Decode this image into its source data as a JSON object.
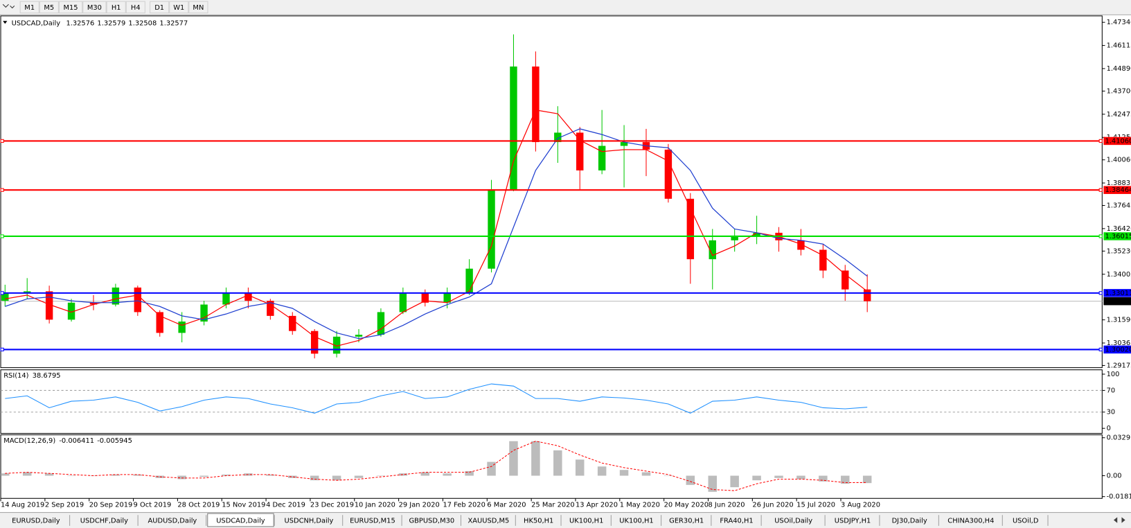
{
  "toolbar": [
    "M1",
    "M5",
    "M15",
    "M30",
    "H1",
    "H4",
    "D1",
    "W1",
    "MN"
  ],
  "chart_data": [
    {
      "type": "candlestick",
      "title": "USDCAD,Daily",
      "ohlc_values": [
        1.32576,
        1.32579,
        1.32508,
        1.32577
      ],
      "categories": [
        "14 Aug 2019",
        null,
        "2 Sep 2019",
        null,
        "20 Sep 2019",
        null,
        "9 Oct 2019",
        null,
        "28 Oct 2019",
        null,
        "15 Nov 2019",
        null,
        "4 Dec 2019",
        null,
        "23 Dec 2019",
        null,
        "10 Jan 2020",
        null,
        "29 Jan 2020",
        null,
        "17 Feb 2020",
        null,
        "6 Mar 2020",
        null,
        "25 Mar 2020",
        null,
        "13 Apr 2020",
        null,
        "1 May 2020",
        null,
        "20 May 2020",
        null,
        "8 Jun 2020",
        null,
        "26 Jun 2020",
        null,
        "15 Jul 2020",
        null,
        "3 Aug 2020",
        null
      ],
      "open": [
        1.326,
        1.33,
        1.331,
        1.316,
        1.325,
        1.324,
        1.333,
        1.32,
        1.309,
        1.315,
        1.324,
        1.33,
        1.326,
        1.318,
        1.31,
        1.298,
        1.307,
        1.308,
        1.32,
        1.33,
        1.325,
        1.33,
        1.343,
        1.385,
        1.45,
        1.41,
        1.415,
        1.395,
        1.408,
        1.41,
        1.406,
        1.38,
        1.348,
        1.358,
        1.36,
        1.362,
        1.358,
        1.353,
        1.342,
        1.332
      ],
      "high": [
        1.3345,
        1.338,
        1.334,
        1.327,
        1.329,
        1.335,
        1.334,
        1.321,
        1.32,
        1.326,
        1.333,
        1.333,
        1.327,
        1.32,
        1.311,
        1.31,
        1.311,
        1.322,
        1.333,
        1.332,
        1.333,
        1.348,
        1.39,
        1.467,
        1.458,
        1.429,
        1.418,
        1.427,
        1.419,
        1.417,
        1.409,
        1.383,
        1.364,
        1.364,
        1.371,
        1.365,
        1.364,
        1.356,
        1.345,
        1.34
      ],
      "low": [
        1.323,
        1.327,
        1.314,
        1.315,
        1.321,
        1.323,
        1.318,
        1.307,
        1.304,
        1.313,
        1.322,
        1.322,
        1.316,
        1.308,
        1.2955,
        1.296,
        1.304,
        1.307,
        1.319,
        1.323,
        1.322,
        1.329,
        1.341,
        1.384,
        1.405,
        1.399,
        1.385,
        1.393,
        1.386,
        1.392,
        1.378,
        1.335,
        1.332,
        1.352,
        1.356,
        1.352,
        1.35,
        1.338,
        1.326,
        1.32
      ],
      "close": [
        1.33,
        1.331,
        1.316,
        1.325,
        1.324,
        1.333,
        1.32,
        1.309,
        1.315,
        1.324,
        1.33,
        1.326,
        1.318,
        1.31,
        1.298,
        1.307,
        1.308,
        1.32,
        1.33,
        1.325,
        1.33,
        1.343,
        1.385,
        1.45,
        1.41,
        1.415,
        1.395,
        1.408,
        1.41,
        1.406,
        1.38,
        1.348,
        1.358,
        1.36,
        1.362,
        1.358,
        1.353,
        1.342,
        1.332,
        1.32577
      ],
      "up_color": "#00c800",
      "down_color": "#ff0000",
      "overlays": [
        {
          "color": "#ff0000",
          "values": [
            1.327,
            1.329,
            1.324,
            1.32,
            1.324,
            1.327,
            1.329,
            1.318,
            1.313,
            1.317,
            1.324,
            1.329,
            1.324,
            1.316,
            1.307,
            1.302,
            1.305,
            1.311,
            1.32,
            1.326,
            1.325,
            1.331,
            1.355,
            1.4,
            1.427,
            1.425,
            1.411,
            1.405,
            1.406,
            1.406,
            1.4,
            1.375,
            1.35,
            1.355,
            1.362,
            1.36,
            1.356,
            1.35,
            1.34,
            1.331
          ]
        },
        {
          "color": "#1f3fd0",
          "values": [
            1.323,
            1.327,
            1.328,
            1.326,
            1.325,
            1.325,
            1.326,
            1.323,
            1.318,
            1.316,
            1.319,
            1.323,
            1.325,
            1.322,
            1.315,
            1.309,
            1.306,
            1.308,
            1.313,
            1.319,
            1.324,
            1.328,
            1.335,
            1.365,
            1.395,
            1.412,
            1.417,
            1.414,
            1.41,
            1.408,
            1.407,
            1.395,
            1.375,
            1.364,
            1.362,
            1.359,
            1.358,
            1.356,
            1.348,
            1.339
          ]
        }
      ],
      "ylim": [
        1.2906,
        1.4768
      ],
      "yticks": [
        {
          "value": 1.4734,
          "label": "1.47340"
        },
        1.46115,
        {
          "value": 1.4489,
          "label": "1.44890"
        },
        {
          "value": 1.437,
          "label": "1.43700"
        },
        1.42475,
        {
          "value": 1.4125,
          "label": "1.41250"
        },
        {
          "value": 1.4006,
          "label": "1.40060"
        },
        1.38835,
        1.37645,
        {
          "value": 1.3642,
          "label": "1.36420"
        },
        {
          "value": 1.3523,
          "label": "1.35230"
        },
        1.34005,
        {
          "value": 1.3159,
          "label": "1.31590"
        },
        1.30365,
        1.29175
      ],
      "levels": [
        {
          "value": 1.4106,
          "label": "1.41060",
          "color": "#ff0000"
        },
        1.38464,
        {
          "value": 1.36015,
          "color": "#00e000"
        },
        1.33011,
        {
          "value": 1.3002,
          "label": "1.30020",
          "color": "#0000ff"
        }
      ],
      "level_colors": [
        "#ff0000",
        "#ff0000",
        "#00e000",
        "#0000ff",
        "#0000ff"
      ],
      "current_price": 1.32577
    },
    {
      "type": "line",
      "title": "RSI(14)",
      "current": 38.6795,
      "color": "#1e90ff",
      "values": [
        55,
        60,
        38,
        50,
        52,
        58,
        48,
        32,
        40,
        52,
        58,
        55,
        45,
        38,
        28,
        45,
        48,
        60,
        68,
        55,
        58,
        72,
        82,
        78,
        55,
        55,
        50,
        58,
        56,
        52,
        45,
        28,
        50,
        52,
        58,
        52,
        48,
        38,
        36,
        39
      ],
      "ylim": [
        -9.3,
        108
      ],
      "yticks": [
        100,
        70,
        30,
        0
      ],
      "levels": [
        70,
        30
      ]
    },
    {
      "type": "macd",
      "title": "MACD(12,26,9)",
      "current": [
        -0.006411,
        -0.005945
      ],
      "hist_color": "#a0a0a0",
      "signal_color": "#ff0000",
      "values": [
        0.002,
        0.003,
        0.002,
        0.0,
        0.0,
        0.001,
        0.001,
        -0.002,
        -0.003,
        -0.001,
        0.001,
        0.002,
        0.001,
        -0.002,
        -0.004,
        -0.004,
        -0.002,
        0.0,
        0.002,
        0.003,
        0.002,
        0.004,
        0.012,
        0.03,
        0.03,
        0.022,
        0.014,
        0.008,
        0.005,
        0.003,
        0.0,
        -0.008,
        -0.014,
        -0.01,
        -0.004,
        -0.002,
        -0.003,
        -0.005,
        -0.007,
        -0.006411
      ],
      "signal": [
        0.002,
        0.003,
        0.002,
        0.001,
        0.0,
        0.001,
        0.001,
        -0.001,
        -0.002,
        -0.002,
        0.0,
        0.001,
        0.001,
        -0.001,
        -0.003,
        -0.004,
        -0.003,
        -0.001,
        0.001,
        0.003,
        0.003,
        0.003,
        0.008,
        0.022,
        0.03,
        0.026,
        0.018,
        0.011,
        0.007,
        0.004,
        0.001,
        -0.005,
        -0.012,
        -0.013,
        -0.007,
        -0.003,
        -0.003,
        -0.004,
        -0.006,
        -0.005945
      ],
      "ylim": [
        -0.0197,
        0.0355
      ],
      "yticks": [
        0.032972,
        {
          "value": 0,
          "label": "0.00"
        },
        -0.01815
      ]
    }
  ],
  "tabs": [
    {
      "label": "EURUSD,Daily"
    },
    {
      "label": "USDCHF,Daily"
    },
    {
      "label": "AUDUSD,Daily"
    },
    {
      "label": "USDCAD,Daily",
      "active": true
    },
    {
      "label": "USDCNH,Daily"
    },
    {
      "label": "EURUSD,M15"
    },
    {
      "label": "GBPUSD,M30"
    },
    {
      "label": "XAUUSD,M5"
    },
    {
      "label": "HK50,H1"
    },
    {
      "label": "UK100,H1"
    },
    {
      "label": "UK100,H1"
    },
    {
      "label": "GER30,H1"
    },
    {
      "label": "FRA40,H1"
    },
    {
      "label": "USOil,Daily"
    },
    {
      "label": "USDJPY,H1"
    },
    {
      "label": "DJ30,Daily"
    },
    {
      "label": "CHINA300,H4"
    },
    {
      "label": "USOil,D"
    }
  ]
}
